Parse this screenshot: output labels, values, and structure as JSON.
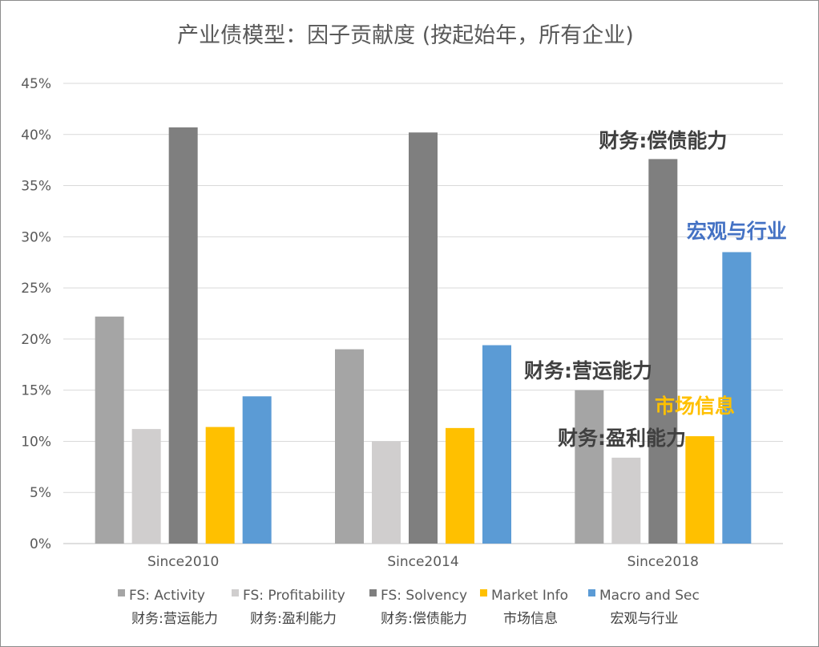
{
  "chart_data": {
    "type": "bar",
    "title": "产业债模型：因子贡献度 (按起始年，所有企业)",
    "categories": [
      "Since2010",
      "Since2014",
      "Since2018"
    ],
    "ylim": [
      0,
      45
    ],
    "yticks": [
      "0%",
      "5%",
      "10%",
      "15%",
      "20%",
      "25%",
      "30%",
      "35%",
      "40%",
      "45%"
    ],
    "grid": true,
    "legend_position": "bottom",
    "series": [
      {
        "name": "FS: Activity",
        "name_cn": "财务:营运能力",
        "color": "#a5a5a5",
        "values": [
          22.2,
          19.0,
          15.0
        ]
      },
      {
        "name": "FS: Profitability",
        "name_cn": "财务:盈利能力",
        "color": "#d0cece",
        "values": [
          11.2,
          10.0,
          8.4
        ]
      },
      {
        "name": "FS: Solvency",
        "name_cn": "财务:偿债能力",
        "color": "#7f7f7f",
        "values": [
          40.7,
          40.2,
          37.6
        ]
      },
      {
        "name": "Market Info",
        "name_cn": "市场信息",
        "color": "#ffc000",
        "values": [
          11.4,
          11.3,
          10.5
        ]
      },
      {
        "name": "Macro and Sec",
        "name_cn": "宏观与行业",
        "color": "#5b9bd5",
        "values": [
          14.4,
          19.4,
          28.5
        ]
      }
    ],
    "annotations": [
      {
        "text": "财务:偿债能力",
        "color": "#404040"
      },
      {
        "text": "宏观与行业",
        "color": "#4472c4"
      },
      {
        "text": "财务:营运能力",
        "color": "#404040"
      },
      {
        "text": "市场信息",
        "color": "#ffc000"
      },
      {
        "text": "财务:盈利能力",
        "color": "#404040"
      }
    ]
  }
}
